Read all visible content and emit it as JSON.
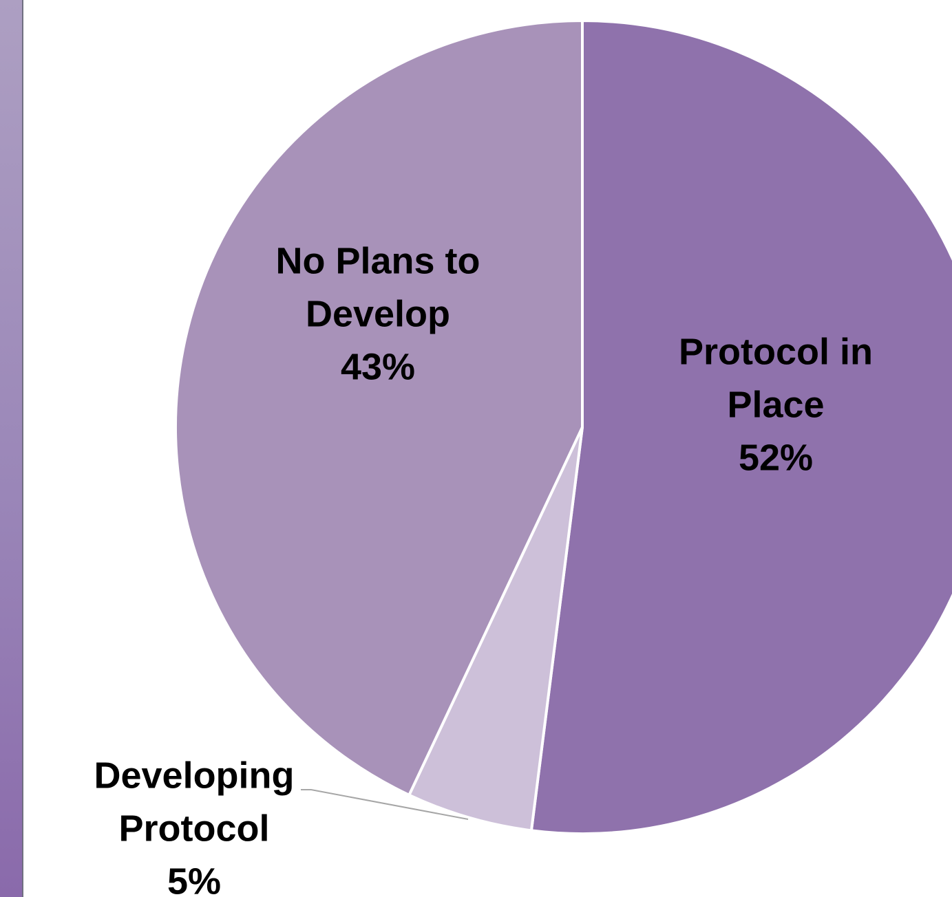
{
  "chart_data": {
    "type": "pie",
    "start_angle": "12 o'clock",
    "direction": "clockwise",
    "slices": [
      {
        "label_lines": [
          "Protocol in",
          "Place"
        ],
        "value": 52,
        "value_text": "52%",
        "color": "#8f72ac"
      },
      {
        "label_lines": [
          "Developing",
          "Protocol"
        ],
        "value": 5,
        "value_text": "5%",
        "color": "#cdc0d9"
      },
      {
        "label_lines": [
          "No Plans to",
          "Develop"
        ],
        "value": 43,
        "value_text": "43%",
        "color": "#a892b9"
      }
    ]
  },
  "colors": {
    "side_bar_top": "#ad9fc2",
    "side_bar_bottom": "#8a6aab",
    "slice_border": "#ffffff",
    "leader_line": "#a6a6a6"
  }
}
